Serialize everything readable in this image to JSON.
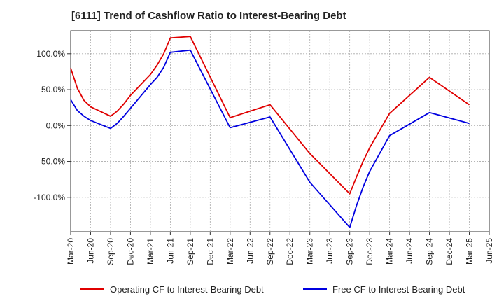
{
  "chart_data": {
    "type": "line",
    "title": "[6111]  Trend of Cashflow Ratio to Interest-Bearing Debt",
    "xlabel": "",
    "ylabel": "",
    "x_ticks": [
      "Mar-20",
      "Jun-20",
      "Sep-20",
      "Dec-20",
      "Mar-21",
      "Jun-21",
      "Sep-21",
      "Dec-21",
      "Mar-22",
      "Jun-22",
      "Sep-22",
      "Dec-22",
      "Mar-23",
      "Jun-23",
      "Sep-23",
      "Dec-23",
      "Mar-24",
      "Jun-24",
      "Sep-24",
      "Dec-24",
      "Mar-25",
      "Jun-25"
    ],
    "xlim": [
      "Mar-20",
      "Jun-25"
    ],
    "y_ticks": [
      {
        "value": 100,
        "label": "100.0%"
      },
      {
        "value": 50,
        "label": "50.0%"
      },
      {
        "value": 0,
        "label": "0.0%"
      },
      {
        "value": -50,
        "label": "-50.0%"
      },
      {
        "value": -100,
        "label": "-100.0%"
      }
    ],
    "ylim": [
      -148,
      132
    ],
    "grid": true,
    "legend_position": "bottom",
    "series": [
      {
        "name": "Operating CF to Interest-Bearing Debt",
        "color": "#e00000",
        "points": [
          [
            "Mar-20",
            80
          ],
          [
            "Apr-20",
            52
          ],
          [
            "May-20",
            35
          ],
          [
            "Jun-20",
            26
          ],
          [
            "Sep-20",
            13
          ],
          [
            "Oct-20",
            20
          ],
          [
            "Nov-20",
            30
          ],
          [
            "Dec-20",
            42
          ],
          [
            "Mar-21",
            71
          ],
          [
            "Apr-21",
            84
          ],
          [
            "May-21",
            100
          ],
          [
            "Jun-21",
            122
          ],
          [
            "Sep-21",
            124
          ],
          [
            "Mar-22",
            11
          ],
          [
            "Sep-22",
            29
          ],
          [
            "Mar-23",
            -39
          ],
          [
            "Sep-23",
            -95
          ],
          [
            "Oct-23",
            -72
          ],
          [
            "Nov-23",
            -50
          ],
          [
            "Dec-23",
            -31
          ],
          [
            "Mar-24",
            17
          ],
          [
            "Sep-24",
            67
          ],
          [
            "Mar-25",
            29
          ]
        ]
      },
      {
        "name": "Free CF to Interest-Bearing Debt",
        "color": "#0000e0",
        "points": [
          [
            "Mar-20",
            36
          ],
          [
            "Apr-20",
            21
          ],
          [
            "May-20",
            13
          ],
          [
            "Jun-20",
            7
          ],
          [
            "Sep-20",
            -4
          ],
          [
            "Oct-20",
            3
          ],
          [
            "Nov-20",
            13
          ],
          [
            "Dec-20",
            24
          ],
          [
            "Mar-21",
            57
          ],
          [
            "Apr-21",
            67
          ],
          [
            "May-21",
            81
          ],
          [
            "Jun-21",
            102
          ],
          [
            "Sep-21",
            105
          ],
          [
            "Mar-22",
            -3
          ],
          [
            "Sep-22",
            12
          ],
          [
            "Mar-23",
            -79
          ],
          [
            "Sep-23",
            -142
          ],
          [
            "Oct-23",
            -112
          ],
          [
            "Nov-23",
            -86
          ],
          [
            "Dec-23",
            -64
          ],
          [
            "Mar-24",
            -14
          ],
          [
            "Sep-24",
            18
          ],
          [
            "Mar-25",
            3
          ]
        ]
      }
    ]
  }
}
